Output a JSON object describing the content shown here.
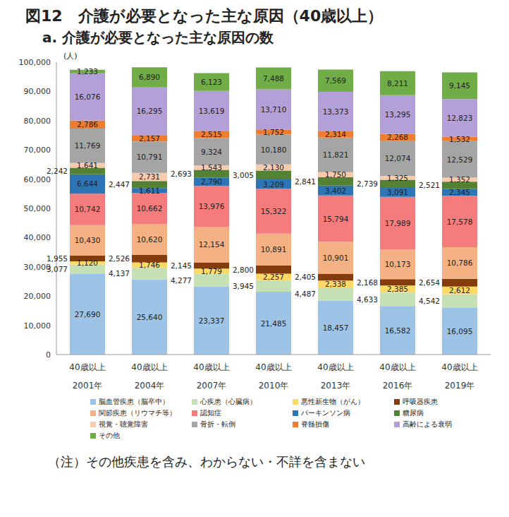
{
  "chart_data": {
    "type": "bar",
    "title": "図12　介護が必要となった主な原因（40歳以上）",
    "subtitle": "a.  介護が必要となった主な原因の数",
    "y_label": "(人)",
    "note": "（注）その他疾患を含み、わからない・不詳を含まない",
    "stacked": true,
    "data_labels": true,
    "grid": false,
    "legend": "bottom",
    "categories": [
      "40歳以上\n2001年",
      "40歳以上\n2004年",
      "40歳以上\n2007年",
      "40歳以上\n2010年",
      "40歳以上\n2013年",
      "40歳以上\n2016年",
      "40歳以上\n2019年"
    ],
    "ylim": [
      0,
      100000
    ],
    "yticks": [
      0,
      {
        "value": 10000,
        "label": "10,000"
      },
      {
        "value": 20000,
        "label": "20,000"
      },
      {
        "value": 30000,
        "label": "30,000"
      },
      {
        "value": 40000,
        "label": "40,000"
      },
      {
        "value": 50000,
        "label": "50,000"
      },
      {
        "value": 60000,
        "label": "60,000"
      },
      {
        "value": 70000,
        "label": "70,000"
      },
      {
        "value": 80000,
        "label": "80,000"
      },
      {
        "value": 90000,
        "label": "90,000"
      },
      {
        "value": 100000,
        "label": "100,000"
      }
    ],
    "series": [
      {
        "name": "脳血管疾患（脳卒中）",
        "color": "#9DC3E6",
        "values": [
          27690,
          25640,
          23337,
          21485,
          18457,
          16582,
          16095
        ],
        "value_labels": [
          "27,690",
          "25,640",
          "23,337",
          "21,485",
          "18,457",
          "16,582",
          "16,095"
        ]
      },
      {
        "name": "心疾患（心臓病）",
        "color": "#C5E0B4",
        "values": [
          3077,
          4137,
          4277,
          3945,
          4487,
          4633,
          4542
        ],
        "value_labels": [
          "3,077",
          "4,137",
          "4,277",
          "3,945",
          "4,487",
          "4,633",
          "4,542"
        ]
      },
      {
        "name": "悪性新生物（がん）",
        "color": "#FFD966",
        "values": [
          1120,
          1746,
          1779,
          2257,
          2338,
          2385,
          2612
        ],
        "value_labels": [
          "1,120",
          "1,746",
          "1,779",
          "2,257",
          "2,338",
          "2,385",
          "2,612"
        ]
      },
      {
        "name": "呼吸器疾患",
        "color": "#843C0C",
        "values": [
          1955,
          2526,
          2145,
          2800,
          2405,
          2168,
          2654
        ],
        "value_labels": [
          "1,955",
          "2,526",
          "2,145",
          "2,800",
          "2,405",
          "2,168",
          "2,654"
        ]
      },
      {
        "name": "関節疾患（リウマチ等）",
        "color": "#F4B183",
        "values": [
          10430,
          10620,
          12154,
          10891,
          10901,
          10173,
          10786
        ],
        "value_labels": [
          "10,430",
          "10,620",
          "12,154",
          "10,891",
          "10,901",
          "10,173",
          "10,786"
        ]
      },
      {
        "name": "認知症",
        "color": "#F47C7C",
        "values": [
          10742,
          10662,
          13976,
          15322,
          15794,
          17989,
          17578
        ],
        "value_labels": [
          "10,742",
          "10,662",
          "13,976",
          "15,322",
          "15,794",
          "17,989",
          "17,578"
        ]
      },
      {
        "name": "パーキンソン病",
        "color": "#2E75B6",
        "values": [
          6644,
          1611,
          2790,
          3209,
          3402,
          3091,
          2345
        ],
        "value_labels": [
          "6,644",
          "1,611",
          "2,790",
          "3,209",
          "3,402",
          "3,091",
          "2,345"
        ]
      },
      {
        "name": "糖尿病",
        "color": "#548235",
        "values": [
          2242,
          2447,
          2693,
          3005,
          2841,
          2739,
          2521
        ],
        "value_labels": [
          "2,242",
          "2,447",
          "2,693",
          "3,005",
          "2,841",
          "2,739",
          "2,521"
        ]
      },
      {
        "name": "視覚・聴覚障害",
        "color": "#F8CBAD",
        "values": [
          1641,
          2731,
          1543,
          2130,
          1750,
          1325,
          1352
        ],
        "value_labels": [
          "1,641",
          "2,731",
          "1,543",
          "2,130",
          "1,750",
          "1,325",
          "1,352"
        ]
      },
      {
        "name": "骨折・転倒",
        "color": "#A5A5A5",
        "values": [
          11769,
          10791,
          9324,
          10180,
          11821,
          12074,
          12529
        ],
        "value_labels": [
          "11,769",
          "10,791",
          "9,324",
          "10,180",
          "11,821",
          "12,074",
          "12,529"
        ]
      },
      {
        "name": "脊髄損傷",
        "color": "#ED7D31",
        "values": [
          2786,
          2157,
          2515,
          1752,
          2314,
          2268,
          1532
        ],
        "value_labels": [
          "2,786",
          "2,157",
          "2,515",
          "1,752",
          "2,314",
          "2,268",
          "1,532"
        ]
      },
      {
        "name": "高齢による衰弱",
        "color": "#B4A0D8",
        "values": [
          16076,
          16295,
          13619,
          13710,
          13373,
          13295,
          12823
        ],
        "value_labels": [
          "16,076",
          "16,295",
          "13,619",
          "13,710",
          "13,373",
          "13,295",
          "12,823"
        ]
      },
      {
        "name": "その他",
        "color": "#70AD47",
        "values": [
          1233,
          6890,
          6123,
          7488,
          7569,
          8211,
          9145
        ],
        "value_labels": [
          "1,233",
          "6,890",
          "6,123",
          "7,488",
          "7,569",
          "8,211",
          "9,145"
        ]
      }
    ]
  }
}
